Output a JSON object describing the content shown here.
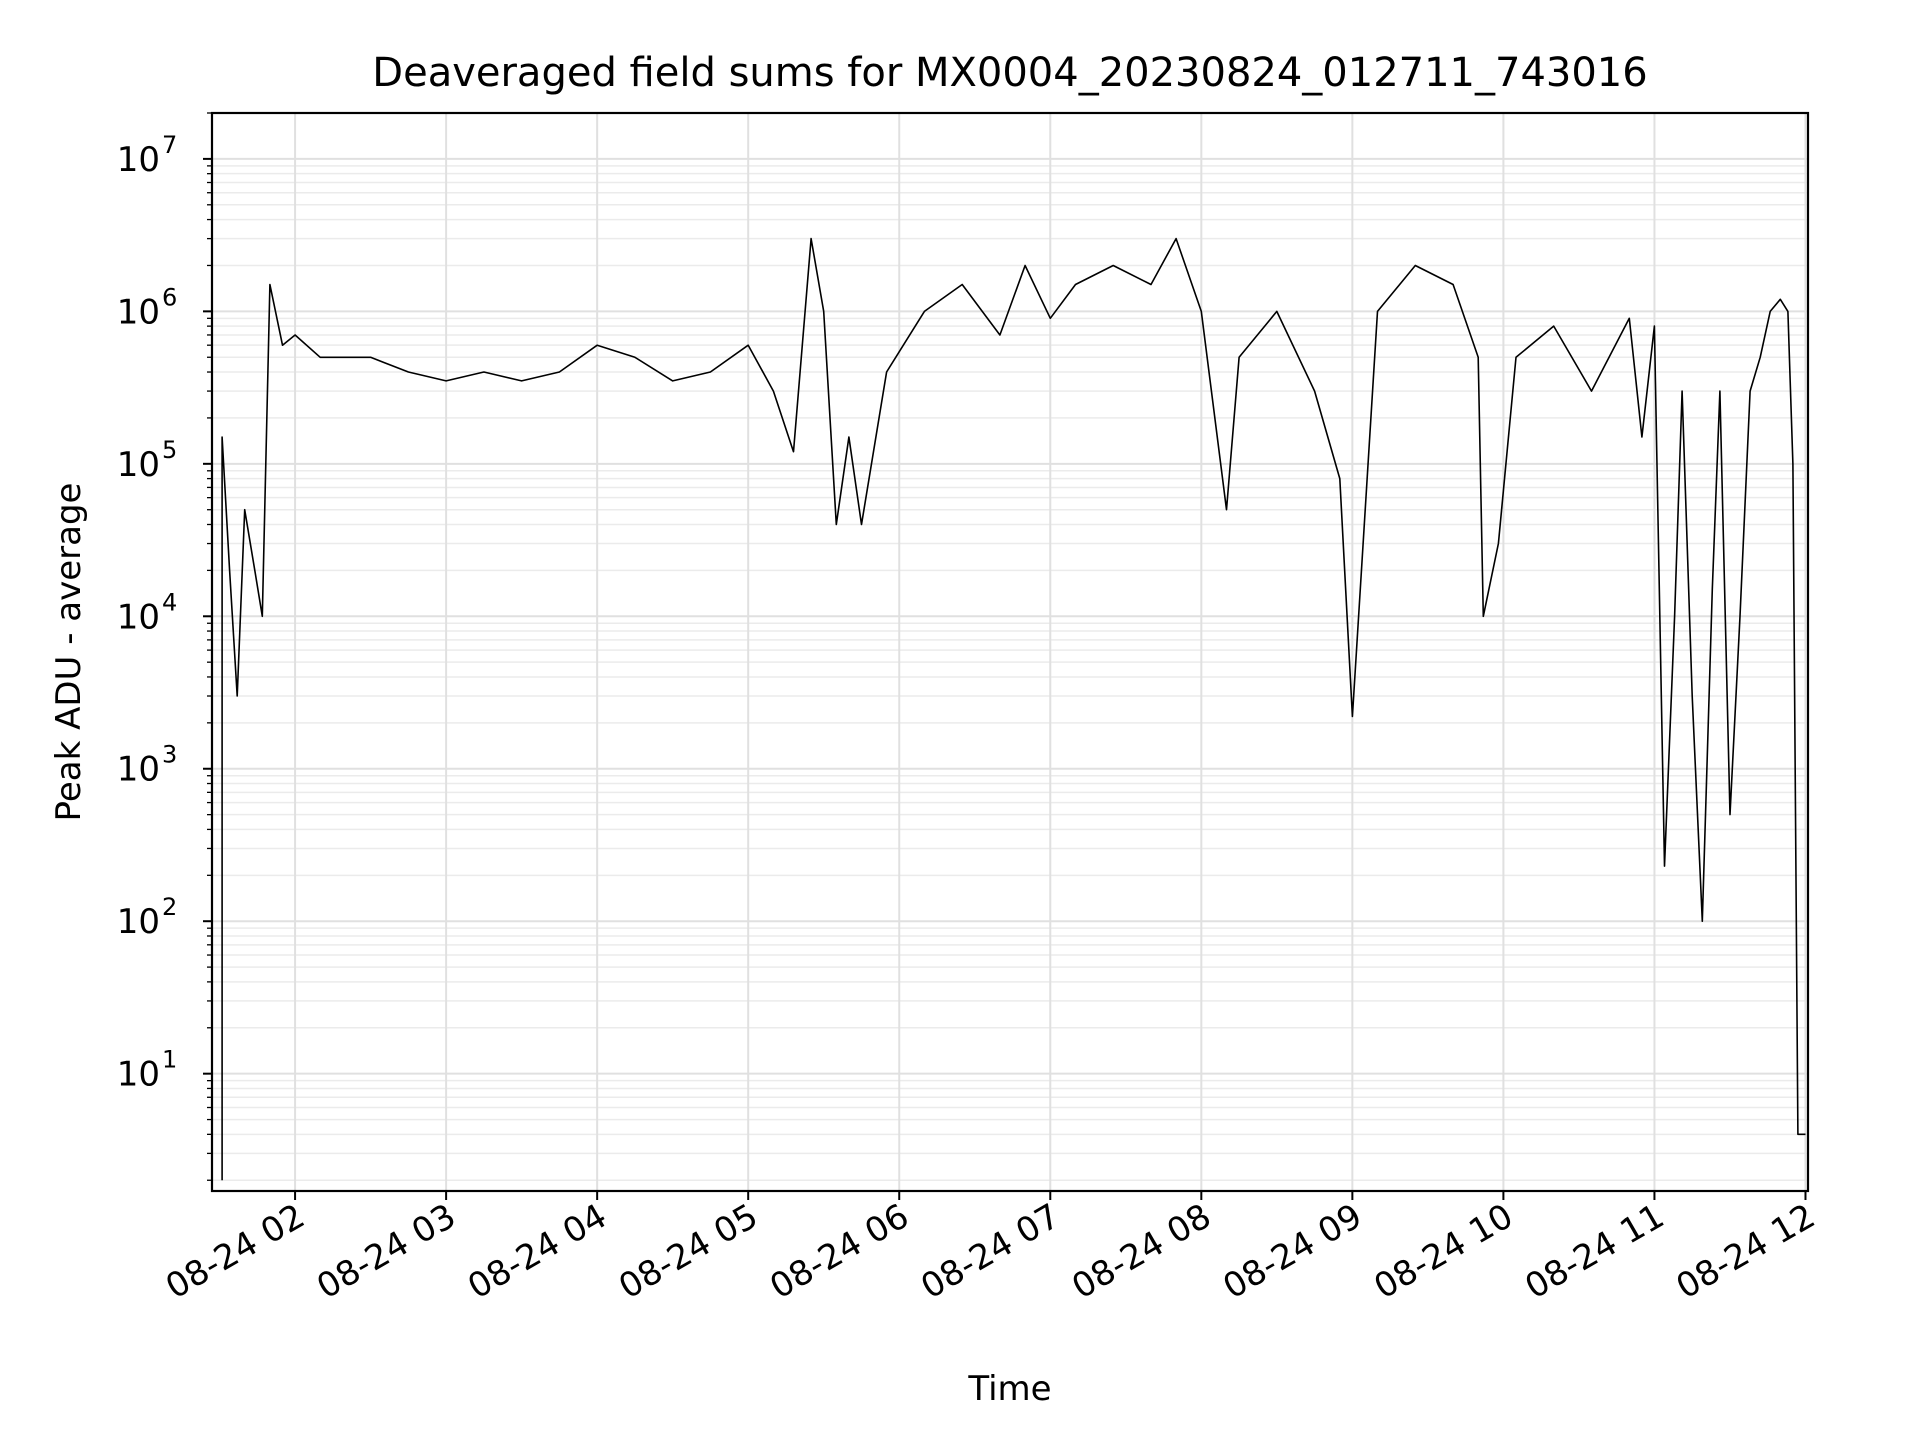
{
  "chart_data": {
    "type": "line",
    "title": "Deaveraged field sums for MX0004_20230824_012711_743016",
    "xlabel": "Time",
    "ylabel": "Peak ADU - average",
    "yscale": "log",
    "ylim": [
      1.7,
      20000000
    ],
    "xlim": [
      "2023-08-24 01:27",
      "2023-08-24 12:01"
    ],
    "grid": true,
    "x_tick_labels": [
      "08-24 02",
      "08-24 03",
      "08-24 04",
      "08-24 05",
      "08-24 06",
      "08-24 07",
      "08-24 08",
      "08-24 09",
      "08-24 10",
      "08-24 11",
      "08-24 12"
    ],
    "y_tick_labels": [
      {
        "base": "10",
        "exp": "1"
      },
      {
        "base": "10",
        "exp": "2"
      },
      {
        "base": "10",
        "exp": "3"
      },
      {
        "base": "10",
        "exp": "4"
      },
      {
        "base": "10",
        "exp": "5"
      },
      {
        "base": "10",
        "exp": "6"
      },
      {
        "base": "10",
        "exp": "7"
      }
    ],
    "line_color": "#000000",
    "series": [
      {
        "x": [
          "2023-08-24 01:31",
          "2023-08-24 01:31",
          "2023-08-24 01:34",
          "2023-08-24 01:37",
          "2023-08-24 01:40",
          "2023-08-24 01:44",
          "2023-08-24 01:47",
          "2023-08-24 01:50",
          "2023-08-24 01:55",
          "2023-08-24 02:00",
          "2023-08-24 02:10",
          "2023-08-24 02:30",
          "2023-08-24 02:45",
          "2023-08-24 03:00",
          "2023-08-24 03:15",
          "2023-08-24 03:30",
          "2023-08-24 03:45",
          "2023-08-24 04:00",
          "2023-08-24 04:15",
          "2023-08-24 04:30",
          "2023-08-24 04:45",
          "2023-08-24 05:00",
          "2023-08-24 05:10",
          "2023-08-24 05:18",
          "2023-08-24 05:25",
          "2023-08-24 05:30",
          "2023-08-24 05:35",
          "2023-08-24 05:40",
          "2023-08-24 05:45",
          "2023-08-24 05:55",
          "2023-08-24 06:10",
          "2023-08-24 06:25",
          "2023-08-24 06:40",
          "2023-08-24 06:50",
          "2023-08-24 07:00",
          "2023-08-24 07:10",
          "2023-08-24 07:25",
          "2023-08-24 07:40",
          "2023-08-24 07:50",
          "2023-08-24 08:00",
          "2023-08-24 08:10",
          "2023-08-24 08:15",
          "2023-08-24 08:30",
          "2023-08-24 08:45",
          "2023-08-24 08:55",
          "2023-08-24 09:00",
          "2023-08-24 09:10",
          "2023-08-24 09:25",
          "2023-08-24 09:40",
          "2023-08-24 09:50",
          "2023-08-24 09:52",
          "2023-08-24 09:58",
          "2023-08-24 10:05",
          "2023-08-24 10:20",
          "2023-08-24 10:35",
          "2023-08-24 10:50",
          "2023-08-24 10:55",
          "2023-08-24 11:00",
          "2023-08-24 11:04",
          "2023-08-24 11:08",
          "2023-08-24 11:11",
          "2023-08-24 11:15",
          "2023-08-24 11:19",
          "2023-08-24 11:23",
          "2023-08-24 11:26",
          "2023-08-24 11:30",
          "2023-08-24 11:34",
          "2023-08-24 11:38",
          "2023-08-24 11:42",
          "2023-08-24 11:46",
          "2023-08-24 11:50",
          "2023-08-24 11:53",
          "2023-08-24 11:55",
          "2023-08-24 11:57",
          "2023-08-24 12:00"
        ],
        "y": [
          2,
          150000,
          20000,
          3000,
          50000,
          20000,
          10000,
          1500000,
          600000,
          700000,
          500000,
          500000,
          400000,
          350000,
          400000,
          350000,
          400000,
          600000,
          500000,
          350000,
          400000,
          600000,
          300000,
          120000,
          3000000,
          1000000,
          40000,
          150000,
          40000,
          400000,
          1000000,
          1500000,
          700000,
          2000000,
          900000,
          1500000,
          2000000,
          1500000,
          3000000,
          1000000,
          50000,
          500000,
          1000000,
          300000,
          80000,
          2200,
          1000000,
          2000000,
          1500000,
          500000,
          10000,
          30000,
          500000,
          800000,
          300000,
          900000,
          150000,
          800000,
          230,
          10000,
          300000,
          3000,
          100,
          15000,
          300000,
          500,
          10000,
          300000,
          500000,
          1000000,
          1200000,
          1000000,
          100000,
          4,
          4
        ]
      }
    ]
  }
}
